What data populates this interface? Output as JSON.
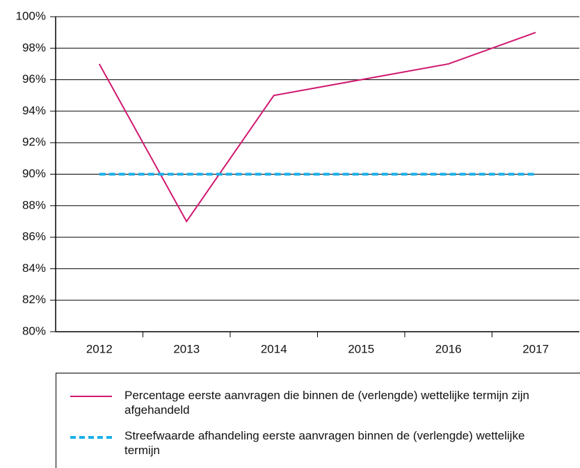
{
  "chart_data": {
    "type": "line",
    "categories": [
      "2012",
      "2013",
      "2014",
      "2015",
      "2016",
      "2017"
    ],
    "series": [
      {
        "name": "Percentage eerste aanvragen die binnen de (verlengde) wettelijke termijn zijn afgehandeld",
        "color": "#d0176f",
        "values": [
          97,
          87,
          95,
          96,
          97,
          99
        ]
      },
      {
        "name": "Streefwaarde afhandeling eerste aanvragen binnen de (verlengde) wettelijke termijn",
        "color": "#1ab0e8",
        "values": [
          90,
          90,
          90,
          90,
          90,
          90
        ],
        "dashed": true
      }
    ],
    "ylim": [
      80,
      100
    ],
    "yticks": [
      {
        "value": 80,
        "label": "80%"
      },
      {
        "value": 82,
        "label": "82%"
      },
      {
        "value": 84,
        "label": "84%"
      },
      {
        "value": 86,
        "label": "86%"
      },
      {
        "value": 88,
        "label": "88%"
      },
      {
        "value": 90,
        "label": "90%"
      },
      {
        "value": 92,
        "label": "92%"
      },
      {
        "value": 94,
        "label": "94%"
      },
      {
        "value": 96,
        "label": "96%"
      },
      {
        "value": 98,
        "label": "98%"
      },
      {
        "value": 100,
        "label": "100%"
      }
    ],
    "grid": true
  }
}
